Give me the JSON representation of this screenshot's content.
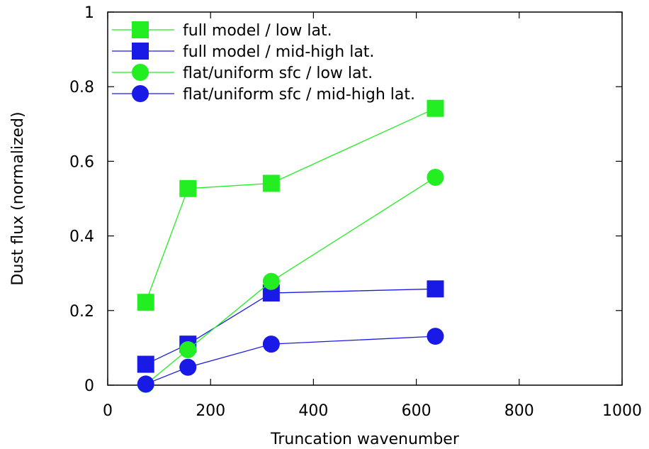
{
  "chart_data": {
    "type": "line",
    "title": "",
    "xlabel": "Truncation wavenumber",
    "ylabel": "Dust flux (normalized)",
    "xlim": [
      0,
      1000
    ],
    "ylim": [
      0,
      1
    ],
    "xticks": [
      0,
      200,
      400,
      600,
      800,
      1000
    ],
    "yticks": [
      0,
      0.2,
      0.4,
      0.6,
      0.8,
      1
    ],
    "ytick_labels": [
      "0",
      "0.2",
      "0.4",
      "0.6",
      "0.8",
      "1"
    ],
    "xtick_labels": [
      "0",
      "200",
      "400",
      "600",
      "800",
      "1000"
    ],
    "grid": false,
    "legend_position": "top-left",
    "series": [
      {
        "name": "full model / low lat.",
        "marker": "square",
        "color": "#22ee22",
        "x": [
          74,
          156,
          318,
          637
        ],
        "y": [
          0.222,
          0.527,
          0.541,
          0.742
        ]
      },
      {
        "name": "full model / mid-high lat.",
        "marker": "square",
        "color": "#1a1ae6",
        "x": [
          74,
          156,
          318,
          637
        ],
        "y": [
          0.056,
          0.11,
          0.247,
          0.258
        ]
      },
      {
        "name": "flat/uniform sfc / low lat.",
        "marker": "circle",
        "color": "#22ee22",
        "x": [
          74,
          156,
          318,
          637
        ],
        "y": [
          0.002,
          0.095,
          0.278,
          0.557
        ]
      },
      {
        "name": "flat/uniform sfc / mid-high lat.",
        "marker": "circle",
        "color": "#1a1ae6",
        "x": [
          74,
          156,
          318,
          637
        ],
        "y": [
          0.003,
          0.048,
          0.11,
          0.131
        ]
      }
    ]
  }
}
